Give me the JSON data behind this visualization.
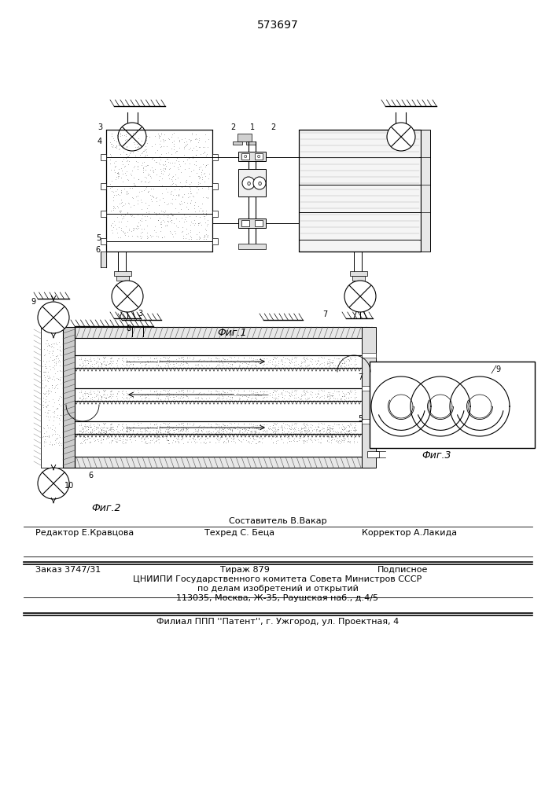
{
  "patent_number": "573697",
  "fig1_label": "Фиг.1",
  "fig2_label": "Фиг.2",
  "fig3_label": "Фиг.3",
  "editor_line": "Редактор Е.Кравцова",
  "composer_line": "Составитель В.Вакар",
  "techred_line": "Техред С. Беца",
  "corrector_line": "Корректор А.Лакида",
  "order_line": "Заказ 3747/31",
  "tirazh_line": "Тираж 879",
  "podpisnoe_line": "Подписное",
  "tsnipi_line": "ЦНИИПИ Государственного комитета Совета Министров СССР",
  "dela_line": "по делам изобретений и открытий",
  "address_line": "113035, Москва, Ж-35, Раушская наб., д.4/5",
  "filial_line": "Филиал ППП ''Патент'', г. Ужгород, ул. Проектная, 4",
  "bg_color": "#ffffff",
  "lc": "#000000"
}
